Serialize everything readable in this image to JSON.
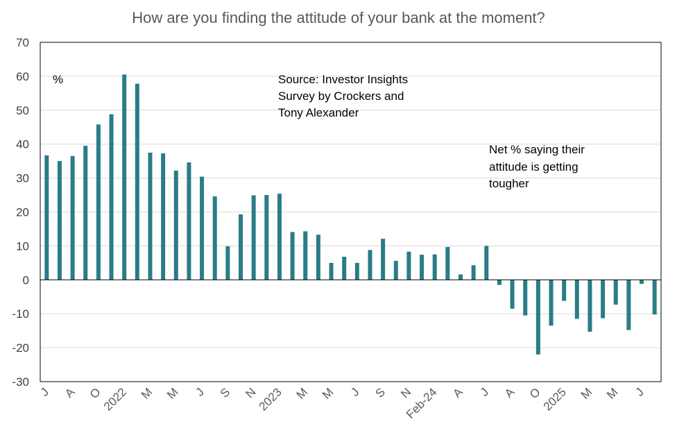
{
  "chart_data": {
    "type": "bar",
    "title": "How are you finding the attitude of your bank at the moment?",
    "unit_label": "%",
    "source_note": [
      "Source: Investor Insights",
      "Survey by Crockers and",
      "Tony Alexander"
    ],
    "series_note": [
      "Net % saying their",
      "attitude is getting",
      "tougher"
    ],
    "ylim": [
      -30,
      70
    ],
    "yticks": [
      -30,
      -20,
      -10,
      0,
      10,
      20,
      30,
      40,
      50,
      60,
      70
    ],
    "grid": true,
    "bar_color": "#2a7c86",
    "values": [
      36.7,
      35.0,
      36.5,
      39.5,
      45.8,
      48.8,
      60.5,
      57.8,
      37.5,
      37.3,
      32.2,
      34.6,
      30.4,
      24.6,
      9.9,
      19.3,
      24.9,
      25.0,
      25.4,
      14.1,
      14.3,
      13.3,
      5.0,
      6.8,
      5.0,
      8.8,
      12.1,
      5.6,
      8.3,
      7.4,
      7.5,
      9.7,
      1.6,
      4.3,
      10.0,
      -1.5,
      -8.5,
      -10.5,
      -22.0,
      -13.5,
      -6.2,
      -11.5,
      -15.3,
      -11.3,
      -7.3,
      -14.8,
      -1.2,
      -10.2
    ],
    "x_tick_labels": [
      {
        "index": 0,
        "label": "J"
      },
      {
        "index": 2,
        "label": "A"
      },
      {
        "index": 4,
        "label": "O"
      },
      {
        "index": 6,
        "label": "2022"
      },
      {
        "index": 8,
        "label": "M"
      },
      {
        "index": 10,
        "label": "M"
      },
      {
        "index": 12,
        "label": "J"
      },
      {
        "index": 14,
        "label": "S"
      },
      {
        "index": 16,
        "label": "N"
      },
      {
        "index": 18,
        "label": "2023"
      },
      {
        "index": 20,
        "label": "M"
      },
      {
        "index": 22,
        "label": "M"
      },
      {
        "index": 24,
        "label": "J"
      },
      {
        "index": 26,
        "label": "S"
      },
      {
        "index": 28,
        "label": "N"
      },
      {
        "index": 30,
        "label": "Feb-24"
      },
      {
        "index": 32,
        "label": "A"
      },
      {
        "index": 34,
        "label": "J"
      },
      {
        "index": 36,
        "label": "A"
      },
      {
        "index": 38,
        "label": "O"
      },
      {
        "index": 40,
        "label": "2025"
      },
      {
        "index": 42,
        "label": "M"
      },
      {
        "index": 44,
        "label": "M"
      },
      {
        "index": 46,
        "label": "J"
      }
    ]
  }
}
